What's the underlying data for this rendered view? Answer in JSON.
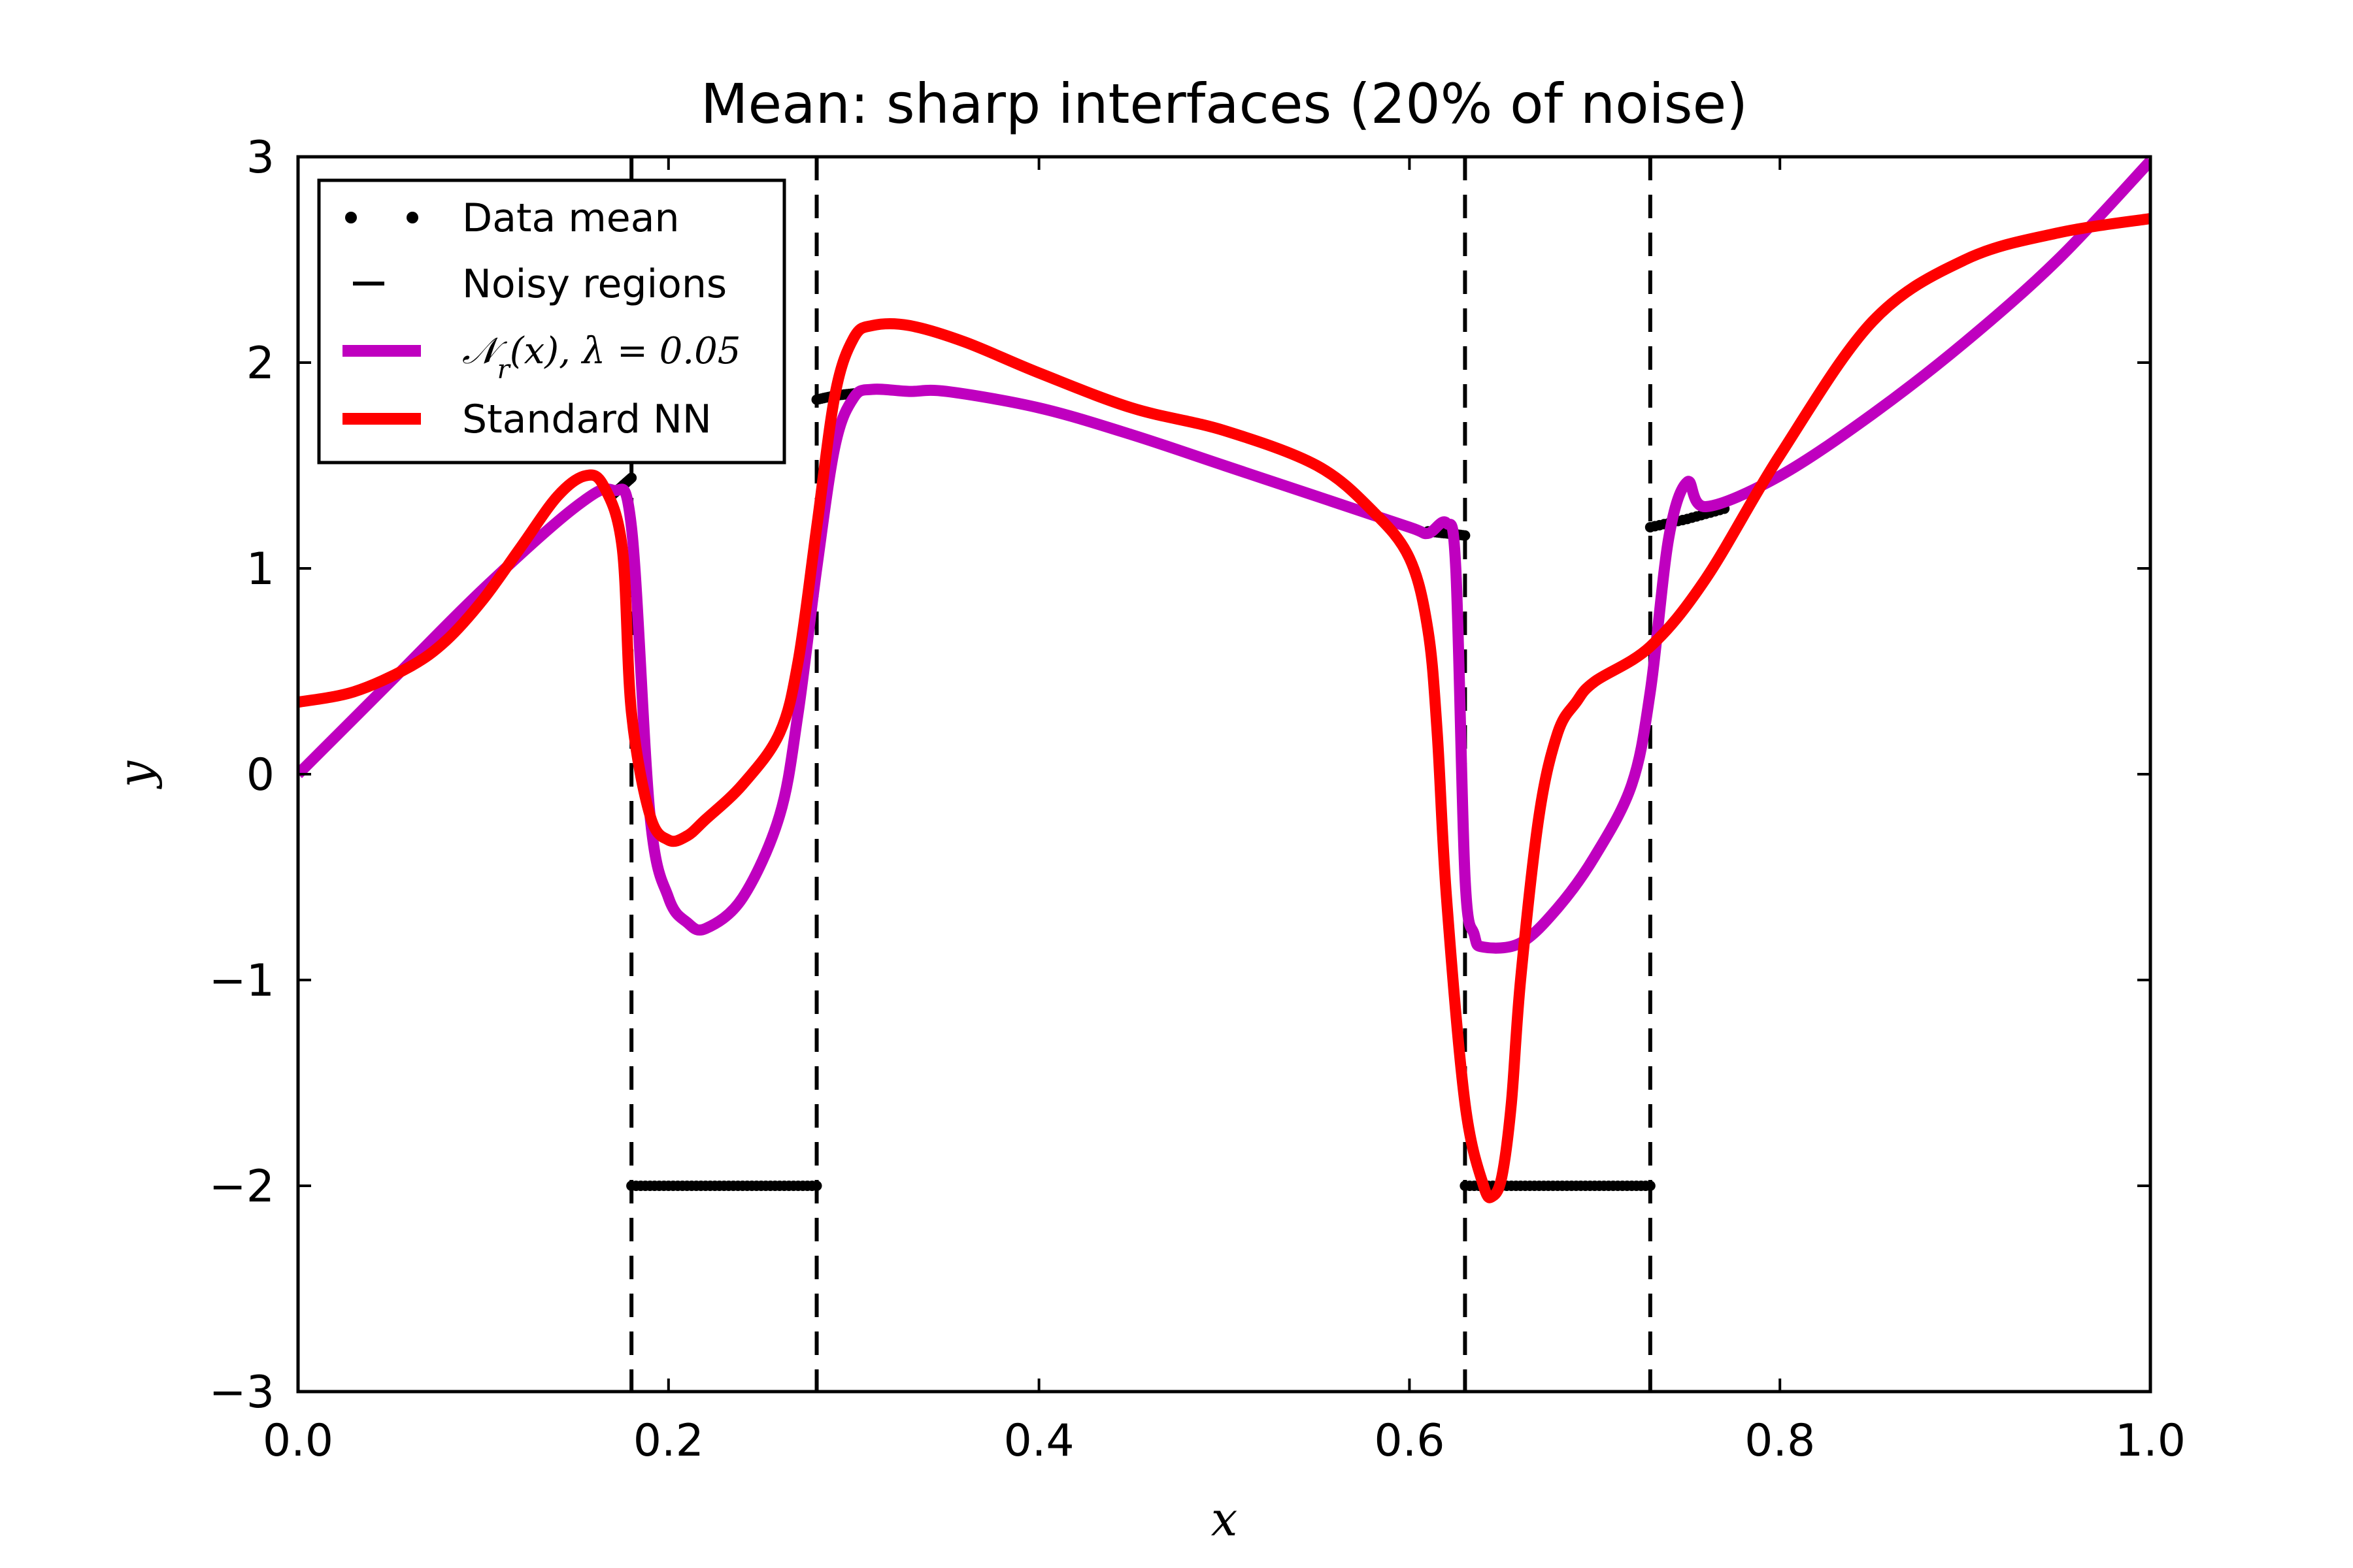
{
  "chart_data": {
    "type": "line",
    "title": "Mean: sharp interfaces (20% of noise)",
    "xlabel": "x",
    "ylabel": "y",
    "xlim": [
      0.0,
      1.0
    ],
    "ylim": [
      -3,
      3
    ],
    "xticks": [
      0.0,
      0.2,
      0.4,
      0.6,
      0.8,
      1.0
    ],
    "xtick_labels": [
      "0.0",
      "0.2",
      "0.4",
      "0.6",
      "0.8",
      "1.0"
    ],
    "yticks": [
      3,
      2,
      1,
      0,
      -1,
      -2,
      -3
    ],
    "ytick_labels": [
      "3",
      "2",
      "1",
      "0",
      "−1",
      "−2",
      "−3"
    ],
    "grid": false,
    "legend_position": "top-left",
    "noisy_region_bounds": [
      0.18,
      0.28,
      0.63,
      0.73
    ],
    "series": [
      {
        "name": "Data mean",
        "style": "dots",
        "color": "#000000",
        "segments": [
          {
            "x": [
              0.17,
              0.175,
              0.18
            ],
            "y": [
              1.36,
              1.4,
              1.44
            ]
          },
          {
            "x": [
              0.18,
              0.2,
              0.22,
              0.24,
              0.26,
              0.28
            ],
            "y": [
              -2,
              -2,
              -2,
              -2,
              -2,
              -2
            ]
          },
          {
            "x": [
              0.28,
              0.29,
              0.3
            ],
            "y": [
              1.82,
              1.84,
              1.85
            ]
          },
          {
            "x": [
              0.61,
              0.62,
              0.63
            ],
            "y": [
              1.18,
              1.17,
              1.16
            ]
          },
          {
            "x": [
              0.63,
              0.65,
              0.67,
              0.69,
              0.71,
              0.73
            ],
            "y": [
              -2,
              -2,
              -2,
              -2,
              -2,
              -2
            ]
          },
          {
            "x": [
              0.73,
              0.75,
              0.77
            ],
            "y": [
              1.2,
              1.24,
              1.29
            ]
          }
        ]
      },
      {
        "name": "Noisy regions",
        "style": "dashed-vertical",
        "color": "#000000",
        "x": [
          0.18,
          0.28,
          0.63,
          0.73
        ]
      },
      {
        "name": "N_r(x), λ = 0.05",
        "legend_label_parts": [
          "𝒩",
          "r",
          "(x),  λ = 0.05"
        ],
        "style": "line",
        "color": "#bf00bf",
        "x": [
          0.0,
          0.05,
          0.1,
          0.15,
          0.17,
          0.18,
          0.19,
          0.2,
          0.21,
          0.22,
          0.24,
          0.26,
          0.27,
          0.28,
          0.29,
          0.3,
          0.31,
          0.33,
          0.35,
          0.4,
          0.45,
          0.5,
          0.55,
          0.6,
          0.61,
          0.62,
          0.625,
          0.63,
          0.635,
          0.64,
          0.66,
          0.68,
          0.7,
          0.72,
          0.73,
          0.74,
          0.75,
          0.76,
          0.8,
          0.85,
          0.9,
          0.95,
          1.0
        ],
        "y": [
          0.0,
          0.45,
          0.9,
          1.3,
          1.38,
          1.2,
          -0.2,
          -0.6,
          -0.72,
          -0.75,
          -0.6,
          -0.2,
          0.3,
          1.0,
          1.6,
          1.83,
          1.87,
          1.86,
          1.86,
          1.78,
          1.65,
          1.5,
          1.35,
          1.2,
          1.17,
          1.22,
          1.0,
          -0.5,
          -0.78,
          -0.84,
          -0.82,
          -0.65,
          -0.4,
          -0.05,
          0.4,
          1.15,
          1.42,
          1.3,
          1.45,
          1.75,
          2.1,
          2.5,
          2.98
        ]
      },
      {
        "name": "Standard NN",
        "style": "line",
        "color": "#ff0000",
        "x": [
          0.0,
          0.03,
          0.06,
          0.08,
          0.1,
          0.12,
          0.14,
          0.155,
          0.165,
          0.175,
          0.18,
          0.19,
          0.2,
          0.21,
          0.22,
          0.24,
          0.26,
          0.27,
          0.28,
          0.29,
          0.3,
          0.31,
          0.33,
          0.36,
          0.4,
          0.45,
          0.5,
          0.55,
          0.58,
          0.6,
          0.61,
          0.615,
          0.62,
          0.63,
          0.64,
          0.645,
          0.65,
          0.655,
          0.66,
          0.67,
          0.68,
          0.69,
          0.7,
          0.73,
          0.76,
          0.8,
          0.85,
          0.9,
          0.95,
          1.0
        ],
        "y": [
          0.35,
          0.4,
          0.52,
          0.65,
          0.85,
          1.1,
          1.35,
          1.45,
          1.4,
          1.1,
          0.3,
          -0.2,
          -0.32,
          -0.3,
          -0.22,
          -0.05,
          0.2,
          0.55,
          1.2,
          1.85,
          2.12,
          2.18,
          2.18,
          2.1,
          1.95,
          1.78,
          1.67,
          1.5,
          1.28,
          1.05,
          0.7,
          0.2,
          -0.6,
          -1.6,
          -2.0,
          -2.05,
          -1.95,
          -1.6,
          -1.0,
          -0.2,
          0.2,
          0.35,
          0.45,
          0.62,
          0.95,
          1.55,
          2.2,
          2.5,
          2.63,
          2.7
        ]
      }
    ]
  }
}
